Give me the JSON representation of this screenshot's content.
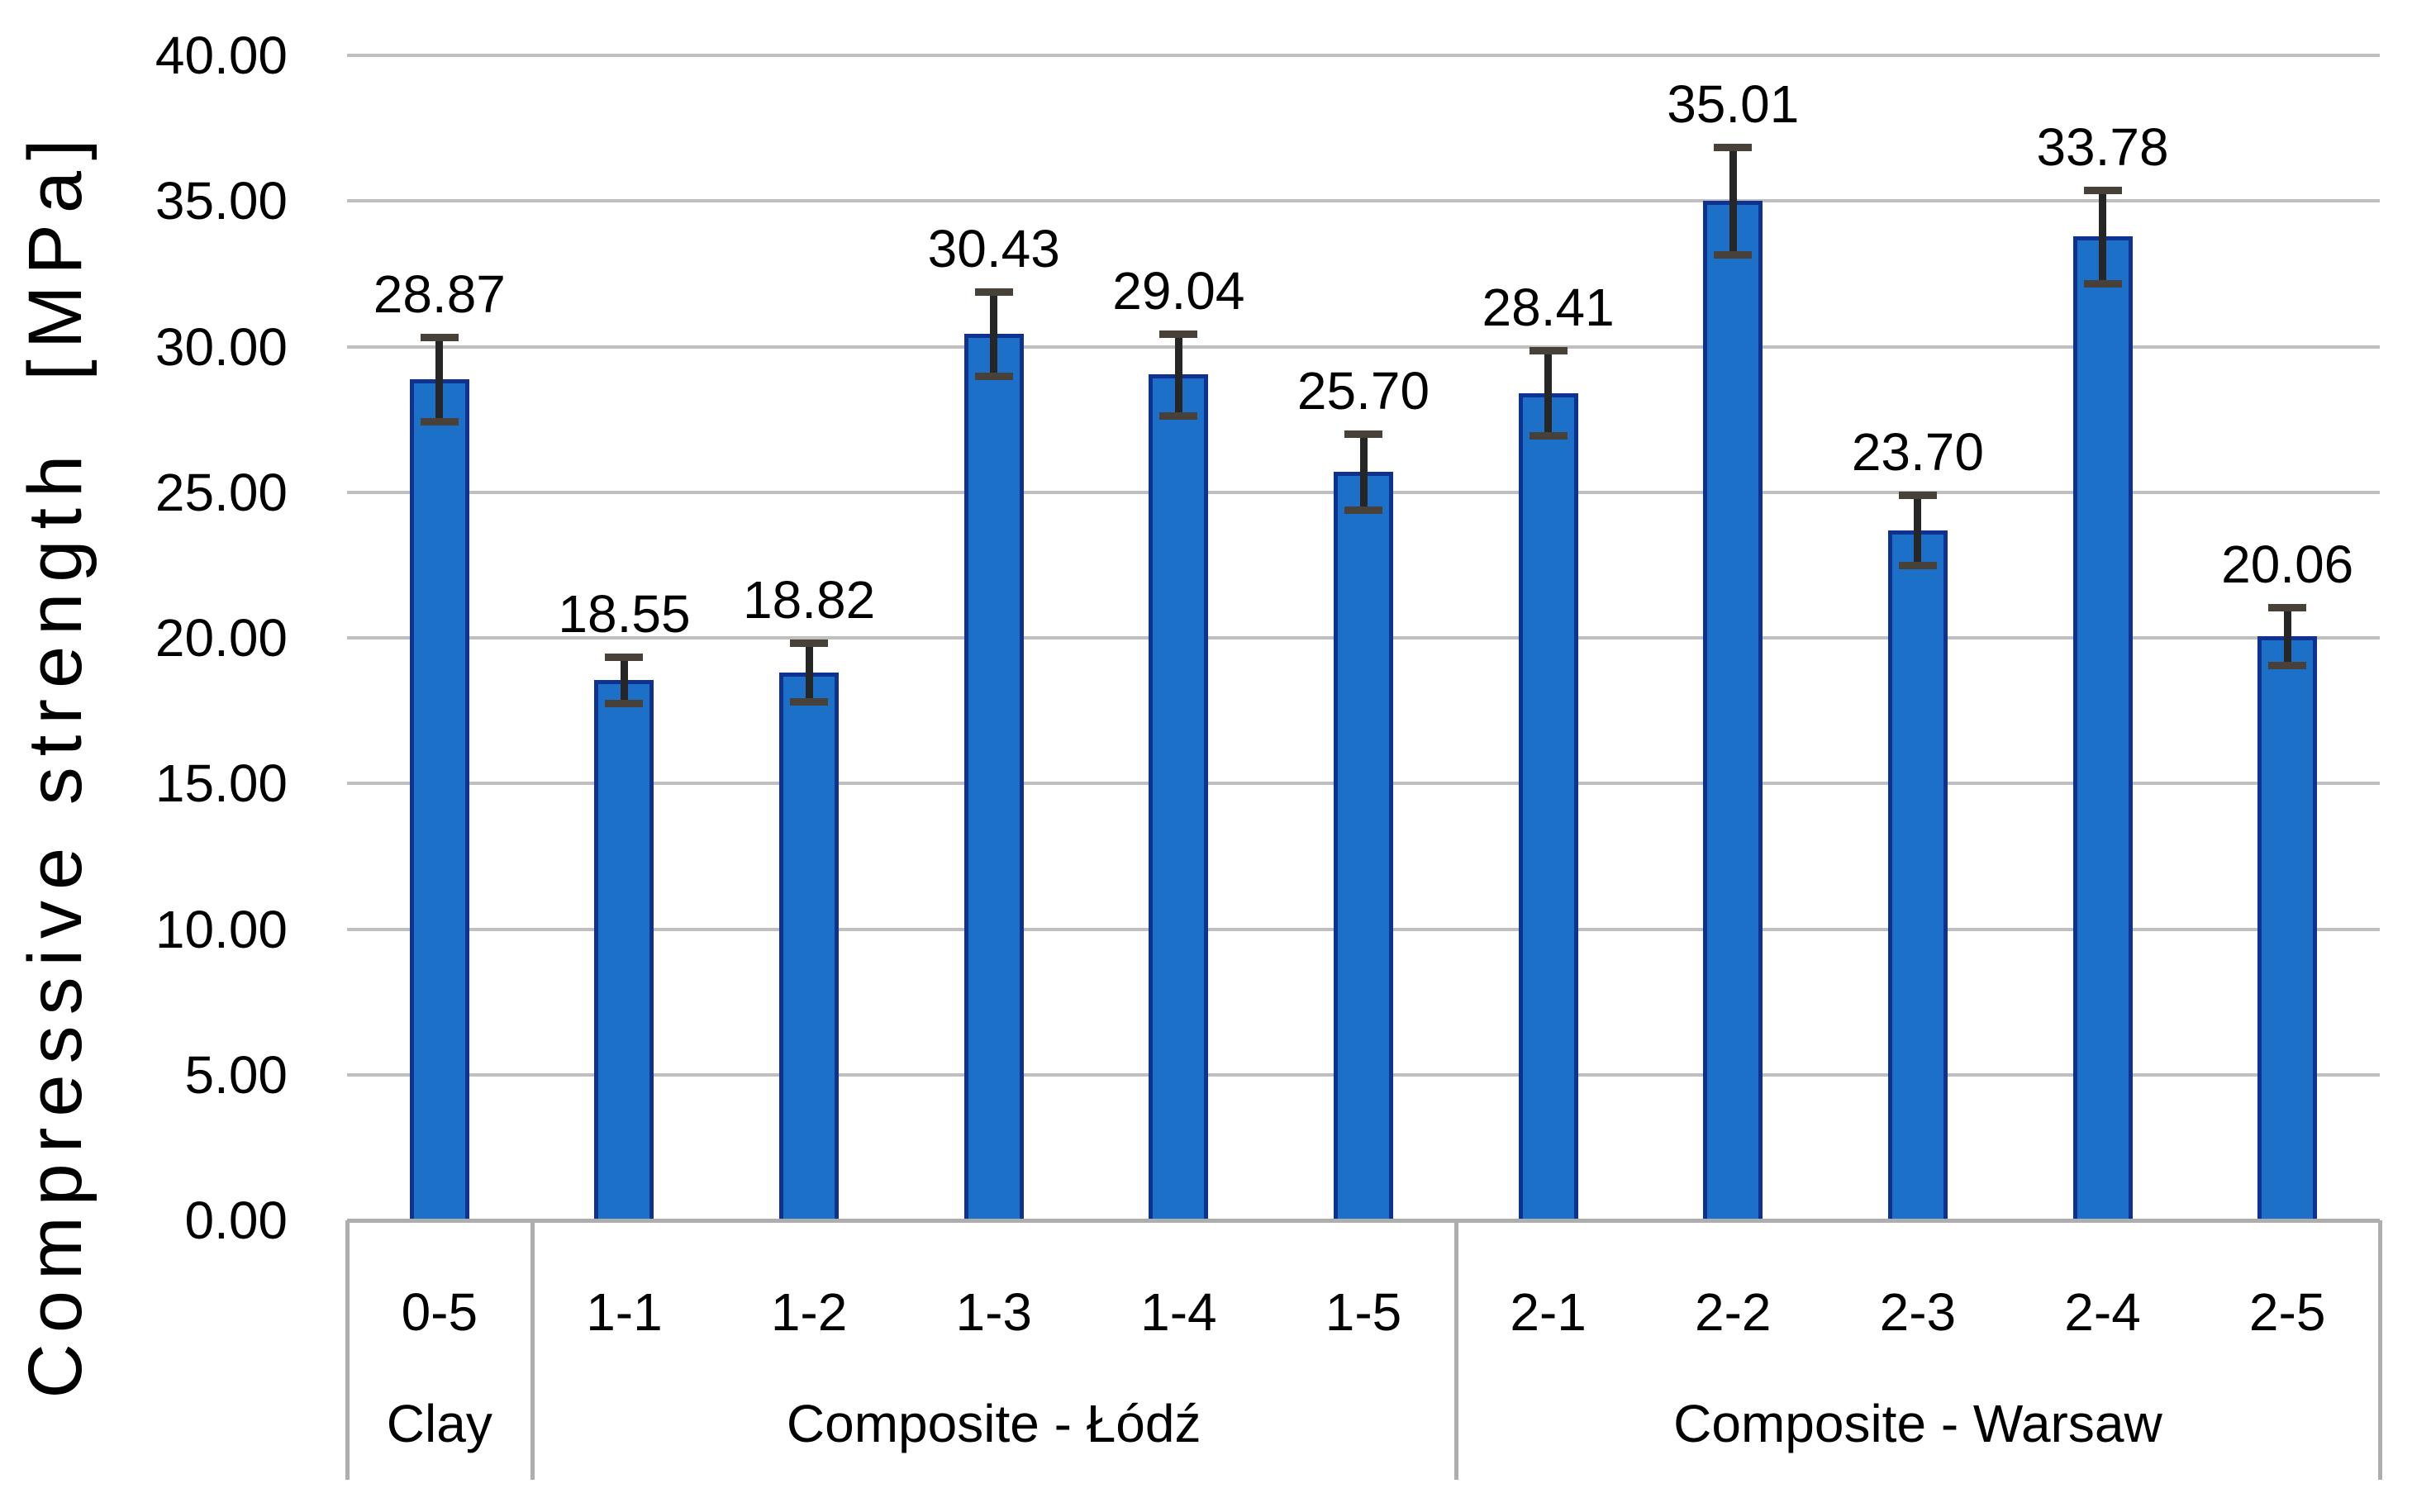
{
  "chart_data": {
    "type": "bar",
    "title": "",
    "ylabel": "Compressive strength  [MPa]",
    "xlabel": "",
    "ylim": [
      0,
      40
    ],
    "ytick_step": 5,
    "yticks": [
      "0.00",
      "5.00",
      "10.00",
      "15.00",
      "20.00",
      "25.00",
      "30.00",
      "35.00",
      "40.00"
    ],
    "categories": [
      "0-5",
      "1-1",
      "1-2",
      "1-3",
      "1-4",
      "1-5",
      "2-1",
      "2-2",
      "2-3",
      "2-4",
      "2-5"
    ],
    "values": [
      28.87,
      18.55,
      18.82,
      30.43,
      29.04,
      25.7,
      28.41,
      35.01,
      23.7,
      33.78,
      20.06
    ],
    "value_labels": [
      "28.87",
      "18.55",
      "18.82",
      "30.43",
      "29.04",
      "25.70",
      "28.41",
      "35.01",
      "23.70",
      "33.78",
      "20.06"
    ],
    "errors": [
      1.45,
      0.8,
      1.0,
      1.45,
      1.4,
      1.3,
      1.45,
      1.85,
      1.2,
      1.6,
      1.0
    ],
    "groups": [
      {
        "label": "Clay",
        "from": 0,
        "to": 1
      },
      {
        "label": "Composite - Łódź",
        "from": 1,
        "to": 6
      },
      {
        "label": "Composite - Warsaw",
        "from": 6,
        "to": 11
      }
    ],
    "legend_position": "none",
    "grid": "horizontal",
    "colors": {
      "bar_fill": "#1d70c8",
      "bar_border": "#0f3190",
      "gridline": "#bfbfbf",
      "axis_line": "#aeaeae",
      "error_line": "#262626",
      "error_cap": "#474139",
      "text": "#000000",
      "background": "#ffffff"
    }
  }
}
